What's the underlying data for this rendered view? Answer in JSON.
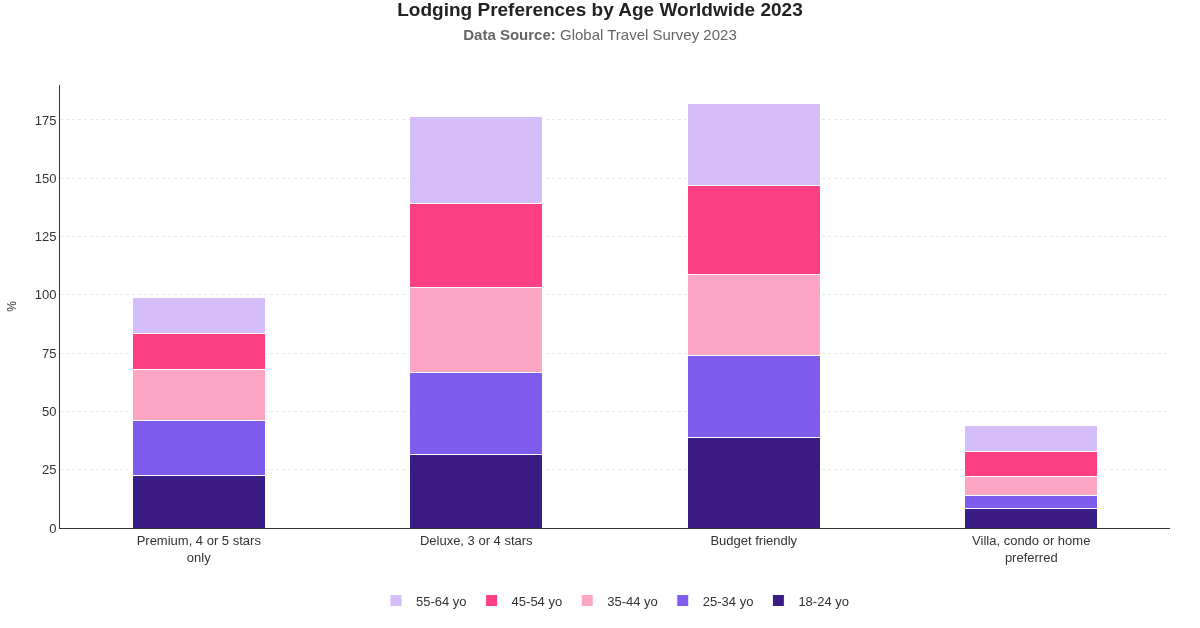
{
  "chart_data": {
    "type": "bar",
    "title": "Lodging Preferences by Age Worldwide 2023",
    "subtitle": "Data Source: Global Travel Survey 2023",
    "ylabel": "%",
    "categories": [
      "Premium, 4 or 5 stars only",
      "Deluxe, 3 or 4 stars",
      "Budget friendly",
      "Villa, condo or home preferred"
    ],
    "stacked": true,
    "series": [
      {
        "name": "18-24 yo",
        "color": "#3b1c85",
        "values": [
          22.5,
          31.4,
          39,
          8.5
        ]
      },
      {
        "name": "25-34 yo",
        "color": "#7f5cec",
        "values": [
          23.7,
          35.5,
          35.2,
          5.5
        ]
      },
      {
        "name": "35-44 yo",
        "color": "#fca5c5",
        "values": [
          21.6,
          36.1,
          34.7,
          8
        ]
      },
      {
        "name": "45-54 yo",
        "color": "#fd3f84",
        "values": [
          15.7,
          36,
          38.1,
          11
        ]
      },
      {
        "name": "55-64 yo",
        "color": "#d5bdfa",
        "values": [
          15.2,
          37.7,
          35.2,
          11
        ]
      }
    ],
    "ylim": [
      0,
      190
    ],
    "yticks": [
      0,
      25,
      50,
      75,
      100,
      125,
      150,
      175
    ],
    "grid": "y",
    "legend": "bottom"
  }
}
